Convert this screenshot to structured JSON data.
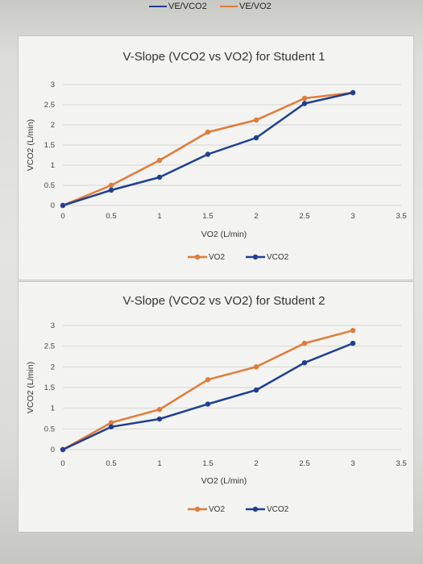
{
  "top_legend": [
    {
      "label": "VE/VCO2",
      "color": "#1f3f8f"
    },
    {
      "label": "VE/VO2",
      "color": "#e07b39"
    }
  ],
  "colors": {
    "vo2": "#e07b39",
    "vco2": "#1f3f8f"
  },
  "chart_data": [
    {
      "type": "line",
      "title": "V-Slope (VCO2 vs VO2) for Student 1",
      "xlabel": "VO2 (L/min)",
      "ylabel": "VCO2 (L/min)",
      "xlim": [
        0,
        3.5
      ],
      "ylim": [
        0,
        3
      ],
      "xticks": [
        "0",
        "0.5",
        "1",
        "1.5",
        "2",
        "2.5",
        "3",
        "3.5"
      ],
      "yticks": [
        "0",
        "0.5",
        "1",
        "1.5",
        "2",
        "2.5",
        "3"
      ],
      "legend": "bottom",
      "grid": true,
      "series": [
        {
          "name": "VO2",
          "color": "#e07b39",
          "x": [
            0,
            0.5,
            1,
            1.5,
            2,
            2.5,
            3
          ],
          "y": [
            0,
            0.5,
            1.12,
            1.82,
            2.12,
            2.66,
            2.8
          ]
        },
        {
          "name": "VCO2",
          "color": "#1f3f8f",
          "x": [
            0,
            0.5,
            1,
            1.5,
            2,
            2.5,
            3
          ],
          "y": [
            0,
            0.38,
            0.7,
            1.27,
            1.68,
            2.53,
            2.8
          ]
        }
      ]
    },
    {
      "type": "line",
      "title": "V-Slope (VCO2 vs VO2) for Student 2",
      "xlabel": "VO2 (L/min)",
      "ylabel": "VCO2 (L/min)",
      "xlim": [
        0,
        3.5
      ],
      "ylim": [
        0,
        3
      ],
      "xticks": [
        "0",
        "0.5",
        "1",
        "1.5",
        "2",
        "2.5",
        "3",
        "3.5"
      ],
      "yticks": [
        "0",
        "0.5",
        "1",
        "1.5",
        "2",
        "2.5",
        "3"
      ],
      "legend": "bottom",
      "grid": true,
      "series": [
        {
          "name": "VO2",
          "color": "#e07b39",
          "x": [
            0,
            0.5,
            1,
            1.5,
            2,
            2.5,
            3
          ],
          "y": [
            0,
            0.65,
            0.97,
            1.69,
            2.0,
            2.57,
            2.88
          ]
        },
        {
          "name": "VCO2",
          "color": "#1f3f8f",
          "x": [
            0,
            0.5,
            1,
            1.5,
            2,
            2.5,
            3
          ],
          "y": [
            0,
            0.55,
            0.74,
            1.1,
            1.44,
            2.1,
            2.57
          ]
        }
      ]
    }
  ]
}
